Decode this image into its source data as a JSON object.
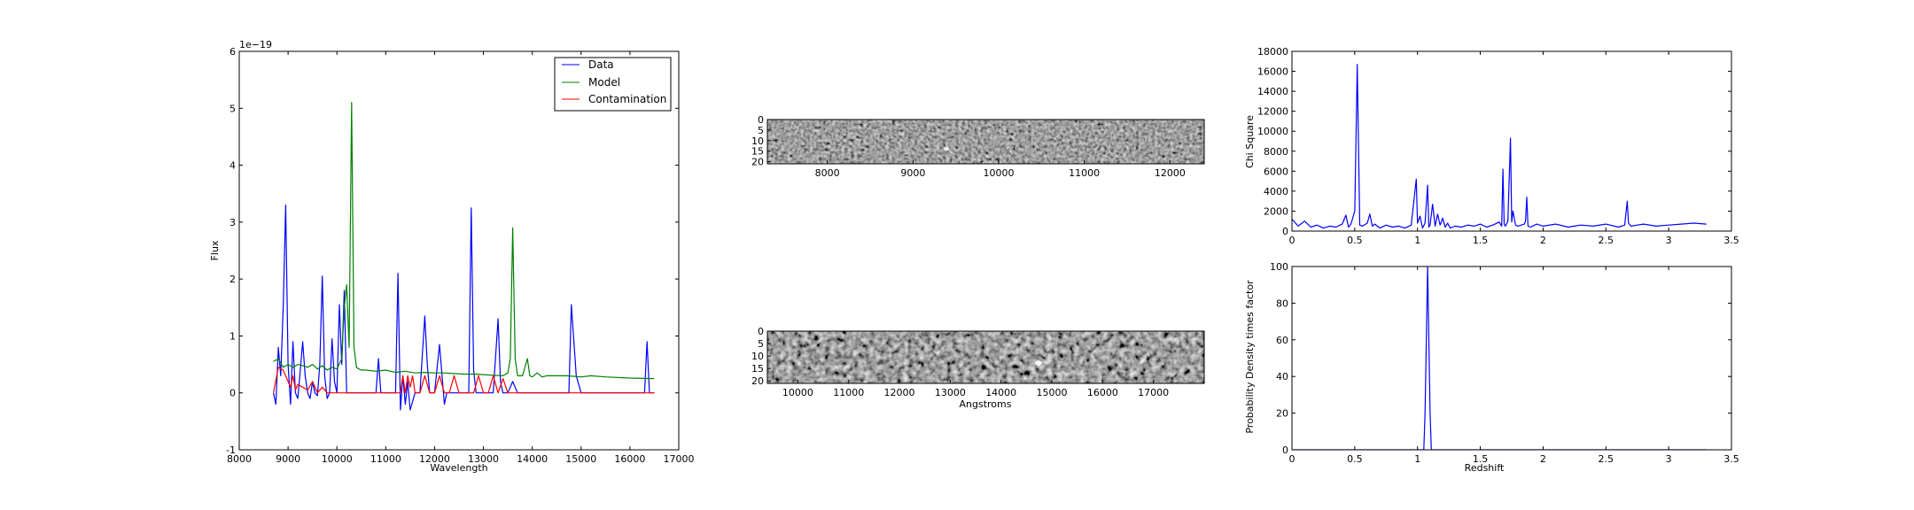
{
  "chart_data": [
    {
      "type": "line",
      "xlabel": "Wavelength",
      "ylabel": "Flux",
      "offset_label": "1e−19",
      "xlim": [
        8000,
        17000
      ],
      "ylim": [
        -1,
        6
      ],
      "xticks": [
        8000,
        9000,
        10000,
        11000,
        12000,
        13000,
        14000,
        15000,
        16000,
        17000
      ],
      "yticks": [
        -1,
        0,
        1,
        2,
        3,
        4,
        5,
        6
      ],
      "grid": false,
      "legend_position": "top-right",
      "series": [
        {
          "name": "Data",
          "color": "#0000ff",
          "x": [
            8700,
            8750,
            8800,
            8850,
            8900,
            8950,
            9000,
            9050,
            9100,
            9150,
            9200,
            9250,
            9300,
            9350,
            9400,
            9450,
            9500,
            9550,
            9600,
            9650,
            9700,
            9750,
            9800,
            9850,
            9900,
            9950,
            10000,
            10050,
            10100,
            10150,
            10200,
            10250,
            10300,
            10350,
            10400,
            10500,
            10600,
            10700,
            10800,
            10850,
            10900,
            11000,
            11100,
            11200,
            11250,
            11300,
            11350,
            11400,
            11450,
            11500,
            11600,
            11700,
            11800,
            11850,
            11900,
            11950,
            12000,
            12100,
            12200,
            12250,
            12300,
            12350,
            12400,
            12500,
            12600,
            12700,
            12750,
            12800,
            12850,
            12900,
            13000,
            13100,
            13200,
            13300,
            13350,
            13400,
            13450,
            13500,
            13600,
            13700,
            13800,
            13900,
            14000,
            14100,
            14200,
            14300,
            14400,
            14500,
            14600,
            14700,
            14750,
            14800,
            14900,
            15000,
            15500,
            16000,
            16200,
            16300,
            16350,
            16400,
            16450,
            16500
          ],
          "y": [
            0.0,
            -0.2,
            0.8,
            0.3,
            1.5,
            3.3,
            0.5,
            -0.2,
            0.9,
            0.0,
            -0.1,
            0.4,
            0.9,
            0.3,
            0.0,
            -0.1,
            0.2,
            0.0,
            -0.05,
            0.5,
            2.05,
            0.3,
            -0.1,
            0.0,
            0.95,
            0.2,
            0.0,
            1.55,
            0.5,
            1.8,
            0.0,
            0.0,
            0.0,
            0.0,
            0.0,
            0.0,
            0.0,
            0.0,
            0.0,
            0.6,
            0.0,
            0.0,
            0.0,
            0.0,
            2.1,
            -0.3,
            0.3,
            -0.2,
            0.2,
            -0.3,
            0.0,
            0.0,
            1.35,
            0.5,
            0.0,
            0.0,
            0.0,
            0.85,
            -0.2,
            0.0,
            0.0,
            0.0,
            0.0,
            0.0,
            0.0,
            0.0,
            3.25,
            0.4,
            0.0,
            0.0,
            0.0,
            0.0,
            0.0,
            1.3,
            0.2,
            0.0,
            0.0,
            0.0,
            0.2,
            0.0,
            0.0,
            0.0,
            0.0,
            0.0,
            0.0,
            0.0,
            0.0,
            0.0,
            0.0,
            0.0,
            0.0,
            1.55,
            0.3,
            0.0,
            0.0,
            0.0,
            0.0,
            0.0,
            0.9,
            0.0,
            0.0,
            0.0
          ]
        },
        {
          "name": "Model",
          "color": "#008000",
          "x": [
            8700,
            8800,
            8900,
            9000,
            9100,
            9200,
            9300,
            9400,
            9500,
            9600,
            9700,
            9800,
            9900,
            10000,
            10100,
            10150,
            10200,
            10250,
            10300,
            10350,
            10400,
            10450,
            10500,
            10600,
            10800,
            11000,
            11200,
            11400,
            11600,
            11800,
            12000,
            12200,
            12400,
            12600,
            12800,
            13000,
            13200,
            13400,
            13500,
            13550,
            13600,
            13650,
            13700,
            13800,
            13900,
            13950,
            14000,
            14100,
            14200,
            14300,
            14500,
            14700,
            15000,
            15200,
            15500,
            16000,
            16500
          ],
          "y": [
            0.55,
            0.6,
            0.45,
            0.5,
            0.45,
            0.5,
            0.48,
            0.45,
            0.5,
            0.42,
            0.48,
            0.4,
            0.45,
            0.42,
            0.6,
            1.5,
            1.9,
            0.8,
            5.1,
            0.8,
            0.45,
            0.42,
            0.4,
            0.4,
            0.38,
            0.4,
            0.36,
            0.38,
            0.35,
            0.36,
            0.35,
            0.35,
            0.34,
            0.33,
            0.33,
            0.32,
            0.31,
            0.3,
            0.35,
            0.6,
            2.9,
            0.6,
            0.3,
            0.3,
            0.6,
            0.3,
            0.28,
            0.35,
            0.28,
            0.3,
            0.3,
            0.3,
            0.28,
            0.3,
            0.28,
            0.26,
            0.25
          ]
        },
        {
          "name": "Contamination",
          "color": "#ff0000",
          "x": [
            8700,
            8800,
            8900,
            9000,
            9050,
            9100,
            9150,
            9200,
            9300,
            9400,
            9500,
            9600,
            9700,
            9800,
            10000,
            10500,
            11000,
            11300,
            11350,
            11400,
            11450,
            11500,
            11550,
            11600,
            11700,
            11800,
            11900,
            12000,
            12100,
            12200,
            12300,
            12400,
            12500,
            12600,
            12700,
            12800,
            12900,
            13000,
            13100,
            13200,
            13300,
            13400,
            13500,
            14000,
            15000,
            16000,
            16500
          ],
          "y": [
            0.0,
            0.45,
            0.4,
            0.2,
            0.1,
            0.3,
            0.05,
            0.15,
            0.1,
            0.05,
            0.2,
            0.0,
            0.1,
            0.0,
            0.0,
            0.0,
            0.0,
            0.0,
            0.3,
            0.0,
            0.3,
            0.1,
            0.3,
            0.0,
            0.0,
            0.3,
            0.0,
            0.0,
            0.3,
            0.0,
            0.0,
            0.3,
            0.0,
            0.0,
            0.0,
            0.0,
            0.3,
            0.0,
            0.0,
            0.3,
            0.0,
            0.25,
            0.0,
            0.0,
            0.0,
            0.0,
            0.0
          ]
        }
      ]
    },
    {
      "type": "heatmap",
      "xlim": [
        7300,
        12400
      ],
      "ylim": [
        21,
        0
      ],
      "xticks": [
        8000,
        9000,
        10000,
        11000,
        12000
      ],
      "yticks": [
        0,
        5,
        10,
        15,
        20
      ]
    },
    {
      "type": "heatmap",
      "xlabel": "Angstroms",
      "xlim": [
        9400,
        18000
      ],
      "ylim": [
        21,
        0
      ],
      "xticks": [
        10000,
        11000,
        12000,
        13000,
        14000,
        15000,
        16000,
        17000
      ],
      "yticks": [
        0,
        5,
        10,
        15,
        20
      ]
    },
    {
      "type": "line",
      "ylabel": "Chi Square",
      "xlim": [
        0.0,
        3.5
      ],
      "ylim": [
        0,
        18000
      ],
      "xticks": [
        0.0,
        0.5,
        1.0,
        1.5,
        2.0,
        2.5,
        3.0,
        3.5
      ],
      "yticks": [
        0,
        2000,
        4000,
        6000,
        8000,
        10000,
        12000,
        14000,
        16000,
        18000
      ],
      "grid": false,
      "series": [
        {
          "color": "#0000ff",
          "x": [
            0.0,
            0.05,
            0.1,
            0.15,
            0.2,
            0.25,
            0.3,
            0.35,
            0.4,
            0.43,
            0.45,
            0.47,
            0.5,
            0.52,
            0.54,
            0.56,
            0.6,
            0.62,
            0.64,
            0.66,
            0.7,
            0.75,
            0.8,
            0.85,
            0.9,
            0.95,
            0.99,
            1.0,
            1.02,
            1.04,
            1.06,
            1.08,
            1.09,
            1.1,
            1.12,
            1.14,
            1.16,
            1.18,
            1.2,
            1.22,
            1.24,
            1.26,
            1.28,
            1.3,
            1.35,
            1.4,
            1.45,
            1.5,
            1.55,
            1.6,
            1.65,
            1.67,
            1.68,
            1.69,
            1.7,
            1.72,
            1.74,
            1.75,
            1.76,
            1.78,
            1.8,
            1.85,
            1.86,
            1.87,
            1.88,
            1.9,
            1.95,
            2.0,
            2.1,
            2.2,
            2.3,
            2.4,
            2.5,
            2.6,
            2.65,
            2.67,
            2.68,
            2.7,
            2.75,
            2.8,
            2.9,
            3.0,
            3.1,
            3.2,
            3.3
          ],
          "y": [
            1200,
            500,
            1000,
            400,
            600,
            300,
            500,
            400,
            700,
            1600,
            400,
            700,
            2000,
            16700,
            600,
            500,
            800,
            1700,
            500,
            700,
            300,
            600,
            400,
            500,
            300,
            600,
            5200,
            800,
            1500,
            300,
            800,
            4600,
            400,
            600,
            2700,
            500,
            1700,
            600,
            1300,
            400,
            800,
            300,
            400,
            500,
            400,
            600,
            500,
            700,
            400,
            600,
            900,
            500,
            6200,
            700,
            500,
            1000,
            9300,
            900,
            2000,
            600,
            500,
            700,
            1000,
            3400,
            500,
            400,
            700,
            500,
            700,
            400,
            600,
            500,
            700,
            400,
            600,
            3000,
            800,
            500,
            600,
            700,
            500,
            600,
            700,
            800,
            700
          ]
        }
      ]
    },
    {
      "type": "line",
      "xlabel": "Redshift",
      "ylabel": "Probability Density times factor",
      "xlim": [
        0.0,
        3.5
      ],
      "ylim": [
        0,
        100
      ],
      "xticks": [
        0.0,
        0.5,
        1.0,
        1.5,
        2.0,
        2.5,
        3.0,
        3.5
      ],
      "yticks": [
        0,
        20,
        40,
        60,
        80,
        100
      ],
      "grid": false,
      "series": [
        {
          "color": "#0000ff",
          "x": [
            0.0,
            1.05,
            1.06,
            1.08,
            1.1,
            1.11,
            3.3
          ],
          "y": [
            0,
            0,
            20,
            100,
            20,
            0,
            0
          ]
        }
      ]
    }
  ],
  "colors": {
    "axes": "#000000",
    "background": "#ffffff"
  }
}
